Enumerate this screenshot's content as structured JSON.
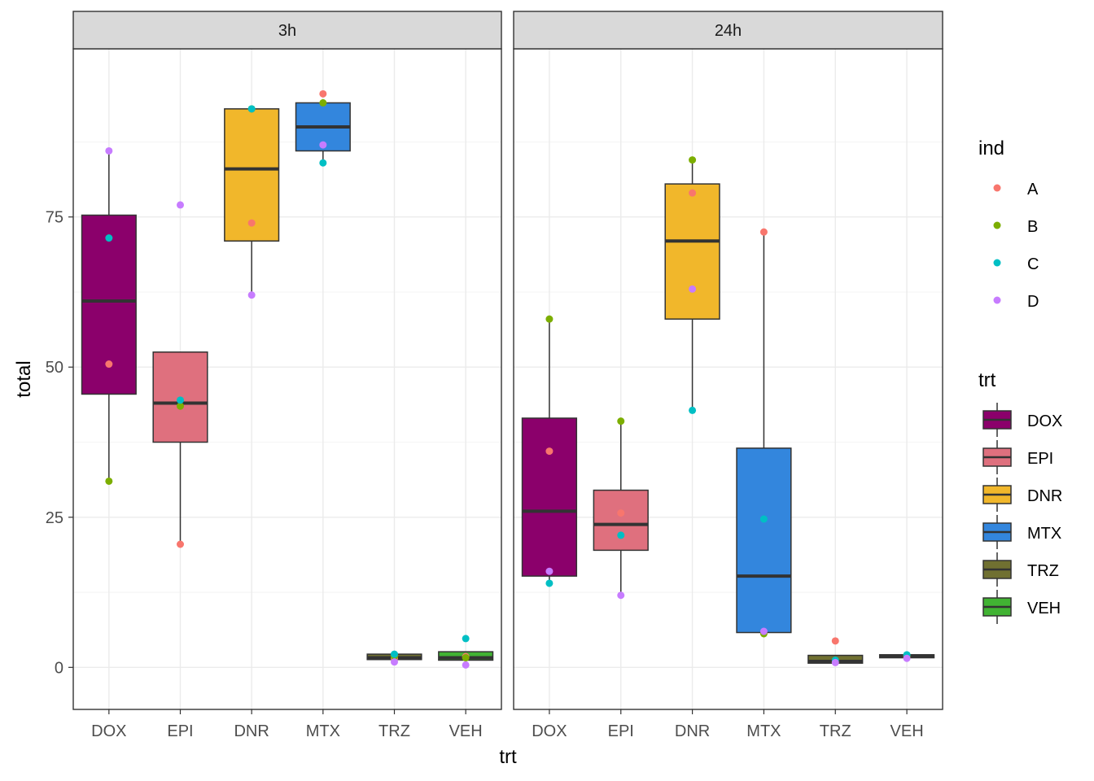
{
  "chart_data": {
    "type": "box",
    "xlabel": "trt",
    "ylabel": "total",
    "ylim": [
      -7,
      103
    ],
    "yticks": [
      0,
      25,
      50,
      75
    ],
    "categories": [
      "DOX",
      "EPI",
      "DNR",
      "MTX",
      "TRZ",
      "VEH"
    ],
    "facets": [
      {
        "label": "3h",
        "boxes": [
          {
            "trt": "DOX",
            "q1": 45.5,
            "median": 61,
            "q3": 75.3,
            "lower": 31,
            "upper": 86
          },
          {
            "trt": "EPI",
            "q1": 37.5,
            "median": 44,
            "q3": 52.5,
            "lower": 20.5,
            "upper": 52.5
          },
          {
            "trt": "DNR",
            "q1": 71,
            "median": 83,
            "q3": 93,
            "lower": 62,
            "upper": 93
          },
          {
            "trt": "MTX",
            "q1": 86,
            "median": 90,
            "q3": 94,
            "lower": 84,
            "upper": 94
          },
          {
            "trt": "TRZ",
            "q1": 1.3,
            "median": 1.6,
            "q3": 2.2,
            "lower": 1.3,
            "upper": 2.2
          },
          {
            "trt": "VEH",
            "q1": 1.2,
            "median": 1.6,
            "q3": 2.6,
            "lower": 1.2,
            "upper": 2.6
          }
        ],
        "points": [
          {
            "trt": "DOX",
            "ind": "A",
            "y": 50.5
          },
          {
            "trt": "DOX",
            "ind": "B",
            "y": 31
          },
          {
            "trt": "DOX",
            "ind": "C",
            "y": 71.5
          },
          {
            "trt": "DOX",
            "ind": "D",
            "y": 86
          },
          {
            "trt": "EPI",
            "ind": "A",
            "y": 20.5
          },
          {
            "trt": "EPI",
            "ind": "B",
            "y": 43.5
          },
          {
            "trt": "EPI",
            "ind": "C",
            "y": 44.5
          },
          {
            "trt": "EPI",
            "ind": "D",
            "y": 77
          },
          {
            "trt": "DNR",
            "ind": "A",
            "y": 74
          },
          {
            "trt": "DNR",
            "ind": "B",
            "y": 93
          },
          {
            "trt": "DNR",
            "ind": "C",
            "y": 93
          },
          {
            "trt": "DNR",
            "ind": "D",
            "y": 62
          },
          {
            "trt": "MTX",
            "ind": "A",
            "y": 95.5
          },
          {
            "trt": "MTX",
            "ind": "B",
            "y": 94
          },
          {
            "trt": "MTX",
            "ind": "C",
            "y": 84
          },
          {
            "trt": "MTX",
            "ind": "D",
            "y": 87
          },
          {
            "trt": "TRZ",
            "ind": "A",
            "y": 1.5
          },
          {
            "trt": "TRZ",
            "ind": "B",
            "y": 1.8
          },
          {
            "trt": "TRZ",
            "ind": "C",
            "y": 2.2
          },
          {
            "trt": "TRZ",
            "ind": "D",
            "y": 0.9
          },
          {
            "trt": "VEH",
            "ind": "A",
            "y": 1.8
          },
          {
            "trt": "VEH",
            "ind": "B",
            "y": 1.6
          },
          {
            "trt": "VEH",
            "ind": "C",
            "y": 4.8
          },
          {
            "trt": "VEH",
            "ind": "D",
            "y": 0.4
          }
        ]
      },
      {
        "label": "24h",
        "boxes": [
          {
            "trt": "DOX",
            "q1": 15.2,
            "median": 26,
            "q3": 41.5,
            "lower": 14,
            "upper": 58
          },
          {
            "trt": "EPI",
            "q1": 19.5,
            "median": 23.8,
            "q3": 29.5,
            "lower": 12,
            "upper": 41
          },
          {
            "trt": "DNR",
            "q1": 58,
            "median": 71,
            "q3": 80.5,
            "lower": 42.8,
            "upper": 84.5
          },
          {
            "trt": "MTX",
            "q1": 5.8,
            "median": 15.2,
            "q3": 36.5,
            "lower": 5.6,
            "upper": 72.5
          },
          {
            "trt": "TRZ",
            "q1": 0.7,
            "median": 1,
            "q3": 2,
            "lower": 0.7,
            "upper": 2
          },
          {
            "trt": "VEH",
            "q1": 1.6,
            "median": 1.9,
            "q3": 2.1,
            "lower": 1.6,
            "upper": 2.1
          }
        ],
        "points": [
          {
            "trt": "DOX",
            "ind": "A",
            "y": 36
          },
          {
            "trt": "DOX",
            "ind": "B",
            "y": 58
          },
          {
            "trt": "DOX",
            "ind": "C",
            "y": 14
          },
          {
            "trt": "DOX",
            "ind": "D",
            "y": 16
          },
          {
            "trt": "EPI",
            "ind": "A",
            "y": 25.7
          },
          {
            "trt": "EPI",
            "ind": "B",
            "y": 41
          },
          {
            "trt": "EPI",
            "ind": "C",
            "y": 22
          },
          {
            "trt": "EPI",
            "ind": "D",
            "y": 12
          },
          {
            "trt": "DNR",
            "ind": "A",
            "y": 79
          },
          {
            "trt": "DNR",
            "ind": "B",
            "y": 84.5
          },
          {
            "trt": "DNR",
            "ind": "C",
            "y": 42.8
          },
          {
            "trt": "DNR",
            "ind": "D",
            "y": 63
          },
          {
            "trt": "MTX",
            "ind": "A",
            "y": 72.5
          },
          {
            "trt": "MTX",
            "ind": "B",
            "y": 5.6
          },
          {
            "trt": "MTX",
            "ind": "C",
            "y": 24.7
          },
          {
            "trt": "MTX",
            "ind": "D",
            "y": 6
          },
          {
            "trt": "TRZ",
            "ind": "A",
            "y": 4.4
          },
          {
            "trt": "TRZ",
            "ind": "B",
            "y": 0.9
          },
          {
            "trt": "TRZ",
            "ind": "C",
            "y": 1.2
          },
          {
            "trt": "TRZ",
            "ind": "D",
            "y": 0.8
          },
          {
            "trt": "VEH",
            "ind": "A",
            "y": 2
          },
          {
            "trt": "VEH",
            "ind": "B",
            "y": 1.8
          },
          {
            "trt": "VEH",
            "ind": "C",
            "y": 2.1
          },
          {
            "trt": "VEH",
            "ind": "D",
            "y": 1.5
          }
        ]
      }
    ],
    "legends": {
      "ind": {
        "title": "ind",
        "entries": [
          {
            "label": "A",
            "color": "#F8766D"
          },
          {
            "label": "B",
            "color": "#7CAE00"
          },
          {
            "label": "C",
            "color": "#00BFC4"
          },
          {
            "label": "D",
            "color": "#C77CFF"
          }
        ]
      },
      "trt": {
        "title": "trt",
        "entries": [
          {
            "label": "DOX",
            "color": "#8B006B"
          },
          {
            "label": "EPI",
            "color": "#DF707E"
          },
          {
            "label": "DNR",
            "color": "#F1B72B"
          },
          {
            "label": "MTX",
            "color": "#3386DD"
          },
          {
            "label": "TRZ",
            "color": "#707031"
          },
          {
            "label": "VEH",
            "color": "#41B333"
          }
        ]
      }
    },
    "legend_position": "right",
    "grid": true
  }
}
